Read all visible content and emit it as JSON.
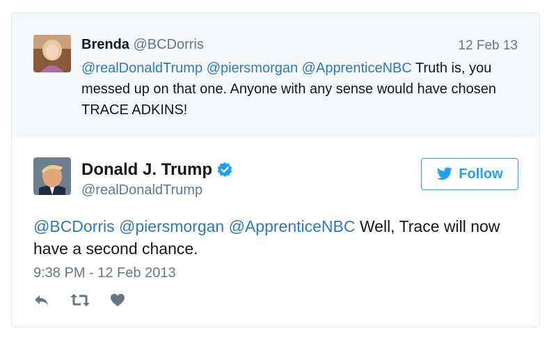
{
  "reply_tweet": {
    "display_name": "Brenda",
    "handle": "@BCDorris",
    "date": "12 Feb 13",
    "mentions": [
      "@realDonaldTrump",
      "@piersmorgan",
      "@ApprenticeNBC"
    ],
    "text": "Truth is, you messed up on that one. Anyone with any sense would have chosen TRACE ADKINS!"
  },
  "main_tweet": {
    "display_name": "Donald J. Trump",
    "handle": "@realDonaldTrump",
    "follow_label": "Follow",
    "mentions": [
      "@BCDorris",
      "@piersmorgan",
      "@ApprenticeNBC"
    ],
    "text": "Well, Trace will now have a second chance.",
    "timestamp": "9:38 PM - 12 Feb 2013"
  },
  "colors": {
    "link": "#2b7bb9",
    "brand": "#1da1f2",
    "muted": "#657786",
    "reply_bg": "#f5f8fa"
  },
  "icons": [
    "verified-badge-icon",
    "twitter-bird-icon",
    "reply-icon",
    "retweet-icon",
    "like-icon"
  ]
}
